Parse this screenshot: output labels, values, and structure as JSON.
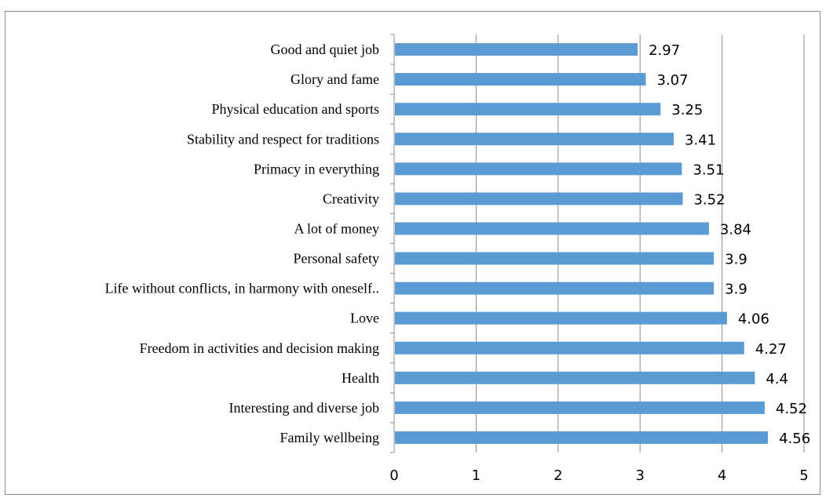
{
  "chart_data": {
    "type": "bar",
    "orientation": "horizontal",
    "categories": [
      "Good and quiet job",
      "Glory and fame",
      "Physical education and sports",
      "Stability and respect for traditions",
      "Primacy in everything",
      "Creativity",
      "A lot of money",
      "Personal safety",
      "Life without conflicts, in harmony with oneself..",
      "Love",
      "Freedom in activities and decision making",
      "Health",
      "Interesting and diverse job",
      "Family wellbeing"
    ],
    "values": [
      2.97,
      3.07,
      3.25,
      3.41,
      3.51,
      3.52,
      3.84,
      3.9,
      3.9,
      4.06,
      4.27,
      4.4,
      4.52,
      4.56
    ],
    "value_labels": [
      "2.97",
      "3.07",
      "3.25",
      "3.41",
      "3.51",
      "3.52",
      "3.84",
      "3.9",
      "3.9",
      "4.06",
      "4.27",
      "4.4",
      "4.52",
      "4.56"
    ],
    "xlim": [
      0,
      5
    ],
    "xticks": [
      "0",
      "1",
      "2",
      "3",
      "4",
      "5"
    ],
    "gridlines": "vertical",
    "bar_color": "#5b9bd5",
    "grid_color": "#8c8c8c",
    "title": "",
    "xlabel": "",
    "ylabel": ""
  }
}
